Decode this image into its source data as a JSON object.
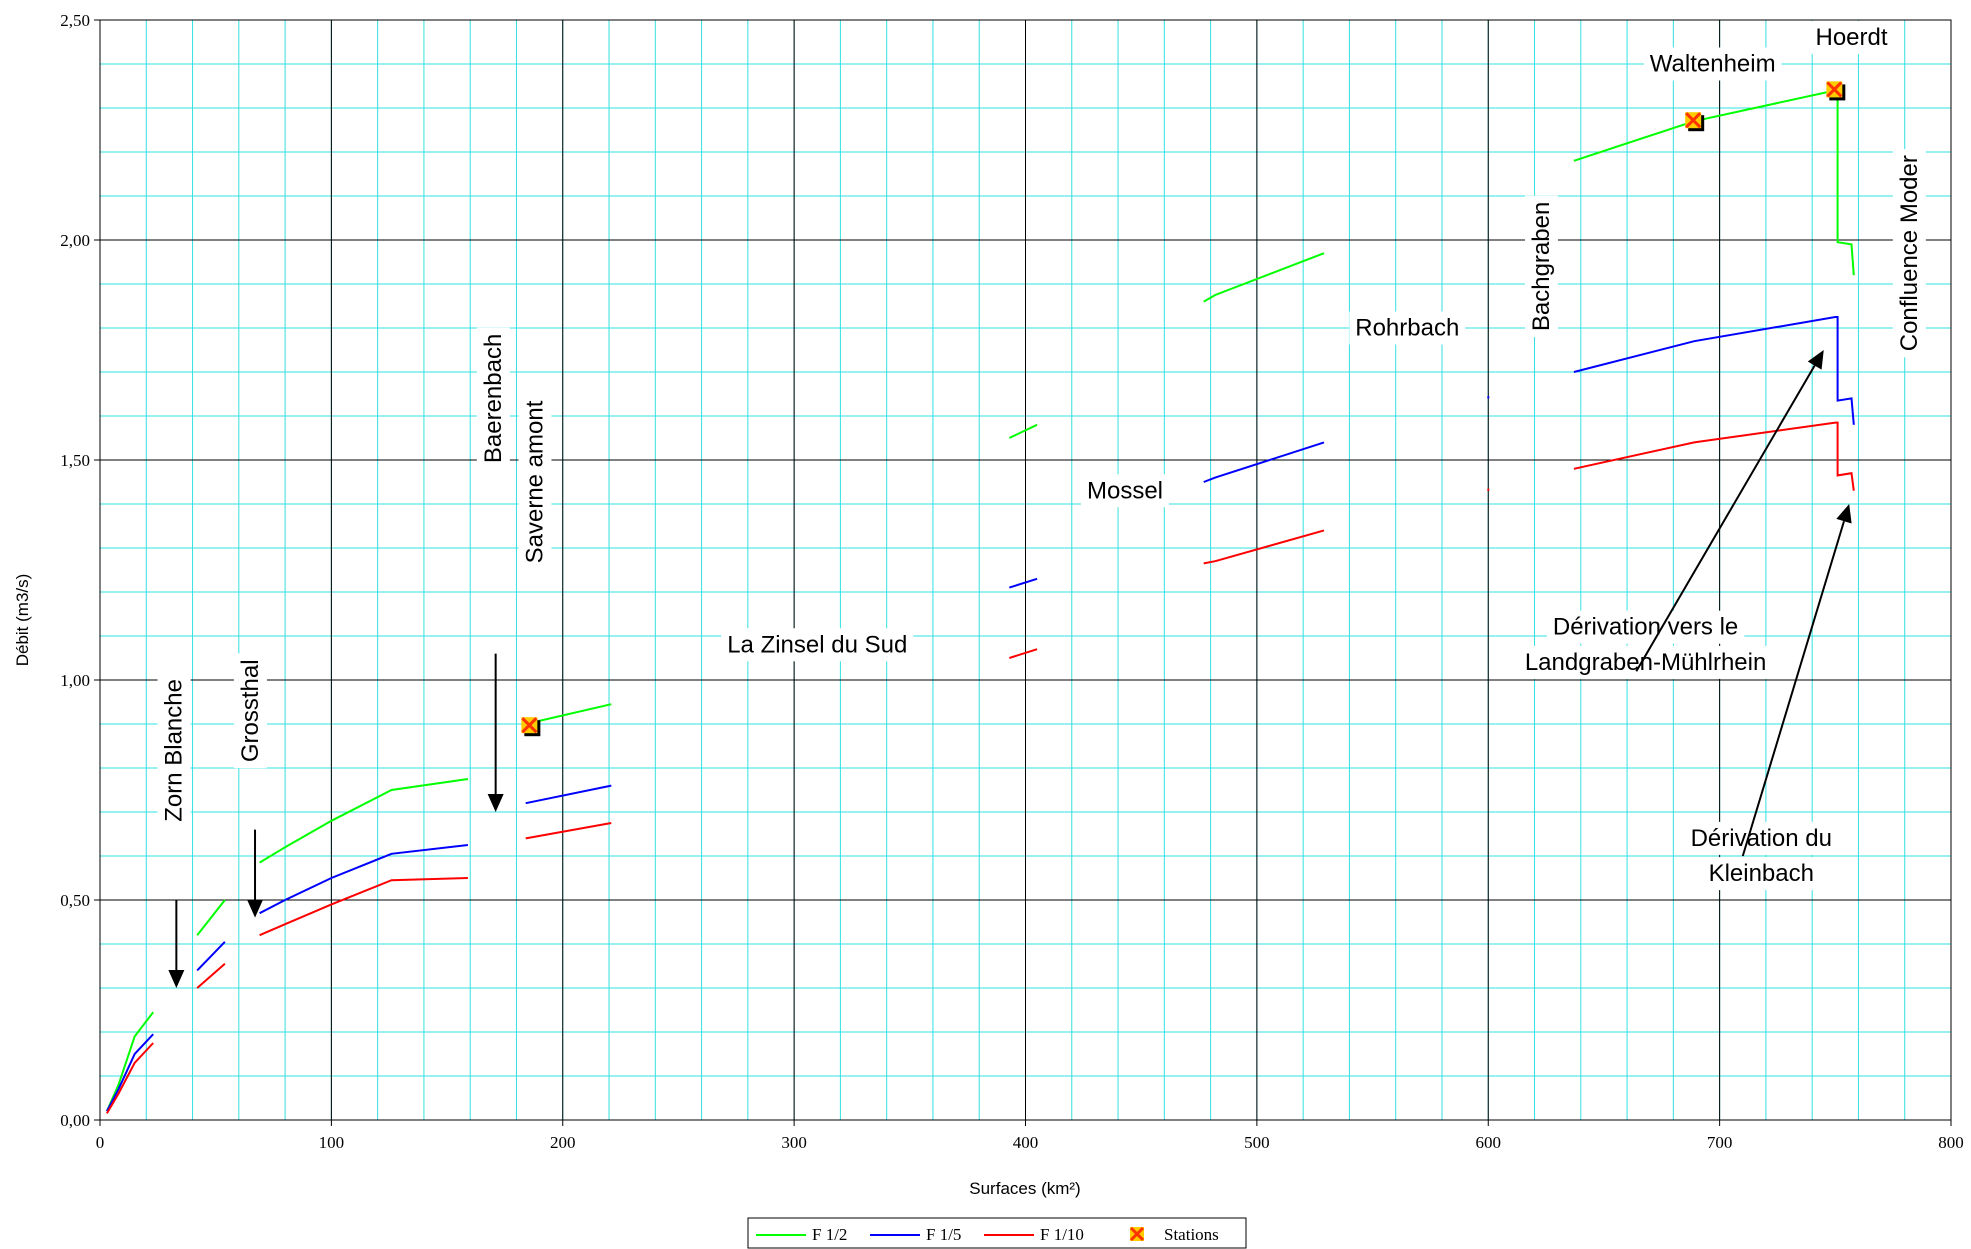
{
  "chart_data": {
    "type": "line",
    "title": "",
    "xlabel": "Surfaces (km²)",
    "ylabel": "Débit (m3/s)",
    "xlim": [
      0,
      800
    ],
    "ylim": [
      0,
      2.5
    ],
    "x_ticks": [
      0,
      100,
      200,
      300,
      400,
      500,
      600,
      700,
      800
    ],
    "x_tick_labels": [
      "0",
      "100",
      "200",
      "300",
      "400",
      "500",
      "600",
      "700",
      "800"
    ],
    "y_ticks": [
      0,
      0.5,
      1,
      1.5,
      2,
      2.5
    ],
    "y_tick_labels": [
      "0,00",
      "0,50",
      "1,00",
      "1,50",
      "2,00",
      "2,50"
    ],
    "grid": true,
    "grid_minor_x": 20,
    "grid_minor_y": 0.1,
    "colors": {
      "minor_grid": "#33e0e0",
      "major_grid": "#000000",
      "f12": "#00ff00",
      "f15": "#0000ff",
      "f110": "#ff0000",
      "station": "#ff3300"
    },
    "legend": {
      "position": "bottom",
      "entries": [
        "F 1/2",
        "F 1/5",
        "F 1/10",
        "Stations"
      ]
    },
    "series": [
      {
        "name": "F 1/2",
        "color": "#00ff00",
        "segments": [
          [
            [
              3,
              0.02
            ],
            [
              8,
              0.08
            ],
            [
              15,
              0.19
            ],
            [
              23,
              0.245
            ]
          ],
          [
            [
              42,
              0.42
            ],
            [
              54,
              0.5
            ]
          ],
          [
            [
              69,
              0.585
            ],
            [
              80,
              0.62
            ],
            [
              100,
              0.68
            ],
            [
              126,
              0.75
            ],
            [
              159,
              0.775
            ]
          ],
          [
            [
              184,
              0.9
            ],
            [
              221,
              0.945
            ]
          ],
          [
            [
              393,
              1.55
            ],
            [
              405,
              1.58
            ]
          ],
          [
            [
              477,
              1.86
            ],
            [
              482,
              1.875
            ],
            [
              529,
              1.97
            ]
          ],
          [
            [
              637,
              2.18
            ],
            [
              689,
              2.27
            ],
            [
              750,
              2.34
            ],
            [
              751,
              2.33
            ],
            [
              751,
              1.995
            ],
            [
              757,
              1.99
            ],
            [
              758,
              1.92
            ]
          ]
        ]
      },
      {
        "name": "F 1/5",
        "color": "#0000ff",
        "segments": [
          [
            [
              3,
              0.02
            ],
            [
              8,
              0.07
            ],
            [
              15,
              0.15
            ],
            [
              23,
              0.195
            ]
          ],
          [
            [
              42,
              0.34
            ],
            [
              54,
              0.405
            ]
          ],
          [
            [
              69,
              0.47
            ],
            [
              80,
              0.5
            ],
            [
              100,
              0.55
            ],
            [
              126,
              0.605
            ],
            [
              159,
              0.625
            ]
          ],
          [
            [
              184,
              0.72
            ],
            [
              221,
              0.76
            ]
          ],
          [
            [
              393,
              1.21
            ],
            [
              405,
              1.23
            ]
          ],
          [
            [
              477,
              1.45
            ],
            [
              482,
              1.46
            ],
            [
              529,
              1.54
            ]
          ],
          [
            [
              600,
              1.645
            ],
            [
              600,
              1.64
            ]
          ],
          [
            [
              637,
              1.7
            ],
            [
              689,
              1.77
            ],
            [
              750,
              1.825
            ],
            [
              751,
              1.825
            ],
            [
              751,
              1.635
            ],
            [
              757,
              1.64
            ],
            [
              758,
              1.58
            ]
          ]
        ]
      },
      {
        "name": "F 1/10",
        "color": "#ff0000",
        "segments": [
          [
            [
              3,
              0.015
            ],
            [
              8,
              0.06
            ],
            [
              15,
              0.13
            ],
            [
              23,
              0.175
            ]
          ],
          [
            [
              42,
              0.3
            ],
            [
              54,
              0.355
            ]
          ],
          [
            [
              69,
              0.42
            ],
            [
              80,
              0.445
            ],
            [
              100,
              0.49
            ],
            [
              126,
              0.545
            ],
            [
              159,
              0.55
            ]
          ],
          [
            [
              184,
              0.64
            ],
            [
              221,
              0.675
            ]
          ],
          [
            [
              393,
              1.05
            ],
            [
              405,
              1.07
            ]
          ],
          [
            [
              477,
              1.265
            ],
            [
              482,
              1.27
            ],
            [
              529,
              1.34
            ]
          ],
          [
            [
              600,
              1.435
            ],
            [
              600,
              1.43
            ]
          ],
          [
            [
              637,
              1.48
            ],
            [
              689,
              1.54
            ],
            [
              750,
              1.585
            ],
            [
              751,
              1.585
            ],
            [
              751,
              1.465
            ],
            [
              757,
              1.47
            ],
            [
              758,
              1.43
            ]
          ]
        ]
      }
    ],
    "stations": [
      {
        "x": 186,
        "y": 0.895
      },
      {
        "x": 689,
        "y": 2.27
      },
      {
        "x": 750,
        "y": 2.34
      }
    ],
    "annotations": [
      {
        "text": "Zorn Blanche",
        "x": 32,
        "y": 0.84,
        "rotate": -90
      },
      {
        "text": "Grossthal",
        "x": 65,
        "y": 0.93,
        "rotate": -90
      },
      {
        "text": "Baerenbach",
        "x": 170,
        "y": 1.64,
        "rotate": -90
      },
      {
        "text": "Saverne amont",
        "x": 188,
        "y": 1.45,
        "rotate": -90
      },
      {
        "text": "La Zinsel du Sud",
        "x": 310,
        "y": 1.08,
        "rotate": 0
      },
      {
        "text": "Mossel",
        "x": 443,
        "y": 1.43,
        "rotate": 0
      },
      {
        "text": "Rohrbach",
        "x": 565,
        "y": 1.8,
        "rotate": 0
      },
      {
        "text": "Bachgraben",
        "x": 623,
        "y": 1.94,
        "rotate": -90
      },
      {
        "text": "Waltenheim",
        "x": 697,
        "y": 2.4,
        "rotate": 0
      },
      {
        "text": "Hoerdt",
        "x": 757,
        "y": 2.46,
        "rotate": 0
      },
      {
        "text": "Confluence Moder",
        "x": 782,
        "y": 1.97,
        "rotate": -90
      },
      {
        "text": "Dérivation vers le",
        "x": 668,
        "y": 1.12,
        "rotate": 0
      },
      {
        "text": "Landgraben-Mühlrhein",
        "x": 668,
        "y": 1.04,
        "rotate": 0
      },
      {
        "text": "Dérivation du",
        "x": 718,
        "y": 0.64,
        "rotate": 0
      },
      {
        "text": "Kleinbach",
        "x": 718,
        "y": 0.56,
        "rotate": 0
      }
    ],
    "arrows": [
      {
        "from": [
          33,
          0.5
        ],
        "to": [
          33,
          0.3
        ]
      },
      {
        "from": [
          67,
          0.66
        ],
        "to": [
          67,
          0.46
        ]
      },
      {
        "from": [
          171,
          1.06
        ],
        "to": [
          171,
          0.7
        ]
      },
      {
        "from": [
          664,
          1.02
        ],
        "to": [
          745,
          1.75
        ]
      },
      {
        "from": [
          710,
          0.6
        ],
        "to": [
          756,
          1.4
        ]
      }
    ]
  }
}
